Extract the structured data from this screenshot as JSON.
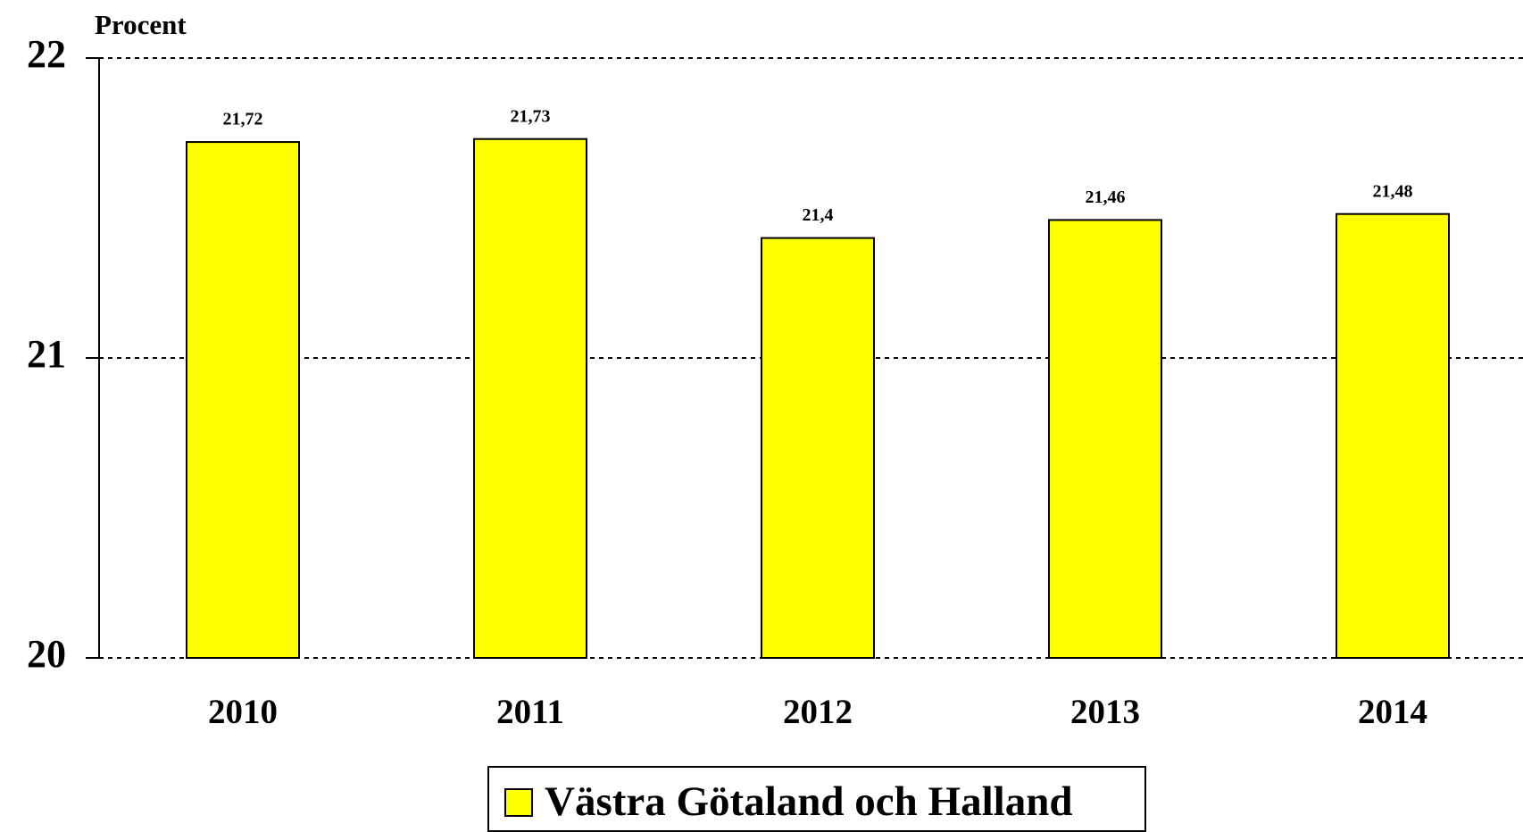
{
  "chart_data": {
    "type": "bar",
    "y_label": "Procent",
    "categories": [
      "2010",
      "2011",
      "2012",
      "2013",
      "2014"
    ],
    "series": [
      {
        "name": "Västra Götaland och Halland",
        "color": "#ffff00",
        "values": [
          21.72,
          21.73,
          21.4,
          21.46,
          21.48
        ],
        "value_labels": [
          "21,72",
          "21,73",
          "21,4",
          "21,46",
          "21,48"
        ]
      }
    ],
    "ylim": [
      20,
      22
    ],
    "yticks": [
      20,
      21,
      22
    ],
    "grid": true,
    "legend": "bottom"
  }
}
